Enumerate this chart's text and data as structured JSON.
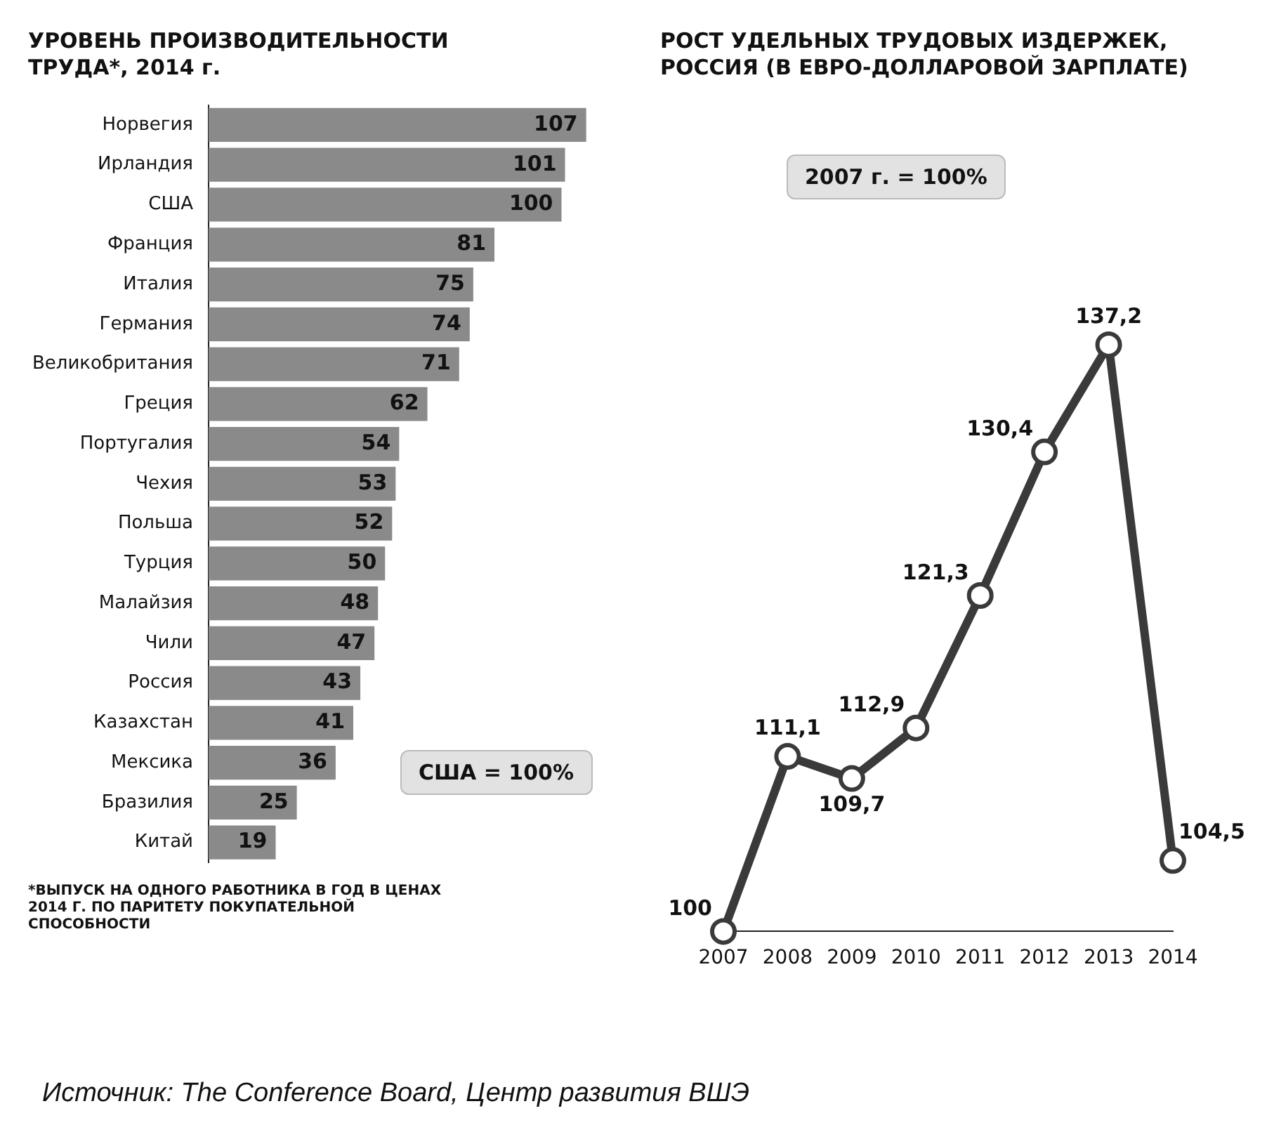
{
  "chart_data": [
    {
      "type": "bar",
      "orientation": "horizontal",
      "title": "УРОВЕНЬ ПРОИЗВОДИТЕЛЬНОСТИ ТРУДА*, 2014 г.",
      "categories": [
        "Норвегия",
        "Ирландия",
        "США",
        "Франция",
        "Италия",
        "Германия",
        "Великобритания",
        "Греция",
        "Португалия",
        "Чехия",
        "Польша",
        "Турция",
        "Малайзия",
        "Чили",
        "Россия",
        "Казахстан",
        "Мексика",
        "Бразилия",
        "Китай"
      ],
      "values": [
        107,
        101,
        100,
        81,
        75,
        74,
        71,
        62,
        54,
        53,
        52,
        50,
        48,
        47,
        43,
        41,
        36,
        25,
        19
      ],
      "color": "#8a8a8a",
      "data_labels": true,
      "grid": false,
      "legend": false,
      "annotations": [
        "США = 100%",
        "*ВЫПУСК НА ОДНОГО РАБОТНИКА В ГОД В ЦЕНАХ 2014 Г. ПО ПАРИТЕТУ ПОКУПАТЕЛЬНОЙ СПОСОБНОСТИ",
        "Источник: The Conference Board, Центр развития ВШЭ"
      ]
    },
    {
      "type": "line",
      "title": "РОСТ УДЕЛЬНЫХ ТРУДОВЫХ ИЗДЕРЖЕК, РОССИЯ (В ЕВРО-ДОЛЛАРОВОЙ ЗАРПЛАТЕ)",
      "categories": [
        "2007",
        "2008",
        "2009",
        "2010",
        "2011",
        "2012",
        "2013",
        "2014"
      ],
      "values": [
        100,
        111.1,
        109.7,
        112.9,
        121.3,
        130.4,
        137.2,
        104.5
      ],
      "value_labels": [
        "100",
        "111,1",
        "109,7",
        "112,9",
        "121,3",
        "130,4",
        "137,2",
        "104,5"
      ],
      "color": "#3a3a3a",
      "marker": "circle",
      "line_style": "solid",
      "grid": false,
      "legend": false,
      "tick_labels": "x",
      "annotations": [
        "2007 г. = 100%"
      ]
    }
  ]
}
